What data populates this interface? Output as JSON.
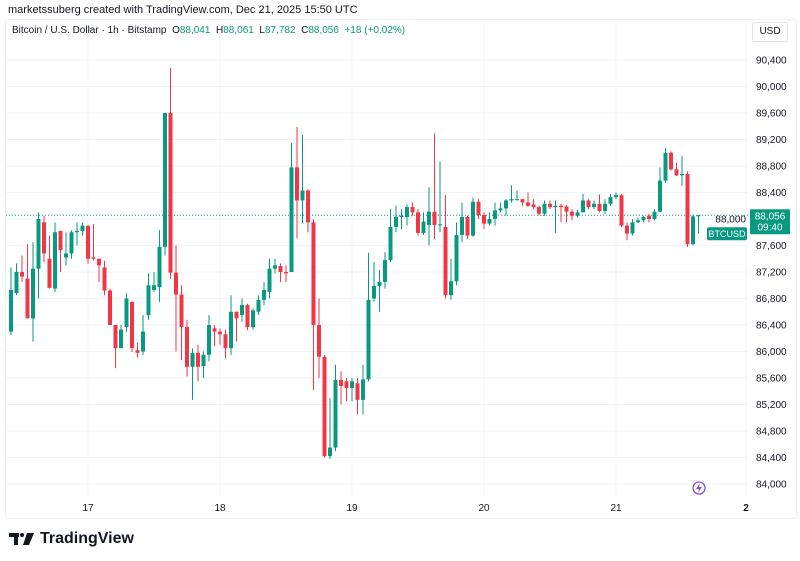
{
  "header": {
    "credit": "marketssuberg created with TradingView.com, Dec 21, 2025 15:50 UTC"
  },
  "legend": {
    "symbol": "Bitcoin / U.S. Dollar · 1h · Bitstamp",
    "o_label": "O",
    "o": "88,041",
    "h_label": "H",
    "h": "88,061",
    "l_label": "L",
    "l": "87,782",
    "c_label": "C",
    "c": "88,056",
    "change": "+18 (+0.02%)"
  },
  "currency": "USD",
  "last_price": {
    "ticker": "BTCUSD",
    "price": "88,056",
    "countdown": "09:40"
  },
  "colors": {
    "up": "#089981",
    "down": "#f23645",
    "grid": "#f0f3fa",
    "accent": "#7e57c2"
  },
  "logo": {
    "text": "TradingView"
  },
  "chart_data": {
    "type": "candlestick",
    "interval": "1h",
    "ylim": [
      84000,
      90400
    ],
    "y_ticks": [
      "90,400",
      "90,000",
      "89,600",
      "89,200",
      "88,800",
      "88,400",
      "88,000",
      "87,600",
      "87,200",
      "86,800",
      "86,400",
      "86,000",
      "85,600",
      "85,200",
      "84,800",
      "84,400",
      "84,000"
    ],
    "x_ticks": [
      "17",
      "18",
      "19",
      "20",
      "21",
      "2"
    ],
    "grid": true,
    "last_price": 88056,
    "ohlc": [
      [
        86300,
        87270,
        86250,
        86930
      ],
      [
        86880,
        87330,
        86850,
        87200
      ],
      [
        87200,
        87450,
        87050,
        87130
      ],
      [
        87100,
        87620,
        86500,
        86500
      ],
      [
        86500,
        87650,
        86150,
        87250
      ],
      [
        87250,
        88100,
        86800,
        88000
      ],
      [
        87950,
        88050,
        87350,
        87480
      ],
      [
        87400,
        87750,
        86950,
        86960
      ],
      [
        86950,
        87950,
        86900,
        87800
      ],
      [
        87820,
        87820,
        87200,
        87530
      ],
      [
        87420,
        87800,
        87300,
        87480
      ],
      [
        87480,
        87830,
        87400,
        87800
      ],
      [
        87800,
        87950,
        87600,
        87820
      ],
      [
        87820,
        87950,
        87750,
        87900
      ],
      [
        87900,
        87900,
        87320,
        87400
      ],
      [
        87420,
        87920,
        87370,
        87400
      ],
      [
        87400,
        87400,
        87050,
        87300
      ],
      [
        87270,
        87370,
        86850,
        86920
      ],
      [
        86920,
        86950,
        86400,
        86400
      ],
      [
        86400,
        86400,
        85750,
        86050
      ],
      [
        86050,
        86400,
        86050,
        86330
      ],
      [
        86370,
        86880,
        86300,
        86800
      ],
      [
        86750,
        86750,
        85990,
        86050
      ],
      [
        86020,
        86140,
        85910,
        85980
      ],
      [
        86000,
        86550,
        85950,
        86300
      ],
      [
        86550,
        87180,
        86480,
        87000
      ],
      [
        86930,
        87200,
        86900,
        87000
      ],
      [
        86970,
        87830,
        86750,
        87580
      ],
      [
        87580,
        89600,
        87450,
        89600
      ],
      [
        89600,
        90280,
        87100,
        87190
      ],
      [
        87190,
        87600,
        86000,
        86860
      ],
      [
        86860,
        87000,
        85870,
        86370
      ],
      [
        86370,
        86480,
        85620,
        85770
      ],
      [
        85770,
        86050,
        85270,
        85980
      ],
      [
        85980,
        86100,
        85550,
        85770
      ],
      [
        85780,
        86000,
        85600,
        85950
      ],
      [
        85950,
        86550,
        85850,
        86400
      ],
      [
        86350,
        86400,
        86080,
        86300
      ],
      [
        86300,
        86350,
        86100,
        86260
      ],
      [
        86260,
        86330,
        85900,
        86050
      ],
      [
        86050,
        86850,
        85950,
        86600
      ],
      [
        86600,
        86600,
        86150,
        86500
      ],
      [
        86550,
        86800,
        86450,
        86700
      ],
      [
        86700,
        86720,
        86320,
        86370
      ],
      [
        86370,
        86650,
        86330,
        86620
      ],
      [
        86600,
        86850,
        86550,
        86780
      ],
      [
        86780,
        87050,
        86700,
        86930
      ],
      [
        86900,
        87400,
        86800,
        87250
      ],
      [
        87250,
        87400,
        87180,
        87300
      ],
      [
        87290,
        87330,
        87050,
        87200
      ],
      [
        87200,
        87300,
        87050,
        87180
      ],
      [
        87200,
        89150,
        87200,
        88780
      ],
      [
        88780,
        89390,
        87710,
        88280
      ],
      [
        88280,
        89270,
        87940,
        88430
      ],
      [
        88430,
        88450,
        87800,
        87950
      ],
      [
        87950,
        88000,
        85420,
        86400
      ],
      [
        86400,
        86800,
        85600,
        85920
      ],
      [
        85920,
        85950,
        84400,
        84420
      ],
      [
        84420,
        85300,
        84380,
        84550
      ],
      [
        84550,
        85800,
        84500,
        85570
      ],
      [
        85570,
        85700,
        85200,
        85480
      ],
      [
        85550,
        85600,
        85250,
        85450
      ],
      [
        85450,
        85600,
        85250,
        85550
      ],
      [
        85520,
        85600,
        85050,
        85270
      ],
      [
        85270,
        85800,
        85050,
        85580
      ],
      [
        85580,
        87490,
        85550,
        86780
      ],
      [
        86800,
        87350,
        86750,
        86990
      ],
      [
        86990,
        87230,
        86600,
        87050
      ],
      [
        87050,
        87500,
        86950,
        87380
      ],
      [
        87380,
        88150,
        87350,
        87880
      ],
      [
        87880,
        88200,
        87800,
        88030
      ],
      [
        88030,
        88150,
        87850,
        88050
      ],
      [
        88030,
        88220,
        87900,
        88180
      ],
      [
        88180,
        88250,
        88050,
        88100
      ],
      [
        88100,
        88150,
        87750,
        87790
      ],
      [
        87790,
        88100,
        87760,
        87960
      ],
      [
        87910,
        88480,
        87600,
        88110
      ],
      [
        88110,
        89290,
        87700,
        87910
      ],
      [
        87910,
        88870,
        87800,
        87920
      ],
      [
        87880,
        88360,
        86800,
        86850
      ],
      [
        86850,
        87400,
        86780,
        87060
      ],
      [
        87060,
        87950,
        87000,
        87760
      ],
      [
        87760,
        88250,
        87650,
        88030
      ],
      [
        88030,
        88050,
        87700,
        87750
      ],
      [
        87750,
        88320,
        87730,
        88260
      ],
      [
        88260,
        88300,
        88000,
        88060
      ],
      [
        88060,
        88100,
        87850,
        87930
      ],
      [
        87930,
        88100,
        87900,
        88000
      ],
      [
        88000,
        88250,
        87900,
        88130
      ],
      [
        88130,
        88250,
        88100,
        88160
      ],
      [
        88160,
        88300,
        88050,
        88280
      ],
      [
        88280,
        88510,
        88250,
        88300
      ],
      [
        88300,
        88430,
        88280,
        88300
      ],
      [
        88300,
        88300,
        88200,
        88250
      ],
      [
        88250,
        88400,
        88180,
        88200
      ],
      [
        88220,
        88300,
        88150,
        88180
      ],
      [
        88180,
        88200,
        88050,
        88080
      ],
      [
        88080,
        88280,
        88050,
        88230
      ],
      [
        88230,
        88280,
        88150,
        88180
      ],
      [
        88180,
        88280,
        87790,
        88200
      ],
      [
        88200,
        88230,
        87950,
        88180
      ],
      [
        88190,
        88210,
        87950,
        88110
      ],
      [
        88110,
        88150,
        87980,
        88050
      ],
      [
        88050,
        88140,
        88020,
        88100
      ],
      [
        88100,
        88380,
        88100,
        88280
      ],
      [
        88280,
        88300,
        88150,
        88180
      ],
      [
        88180,
        88280,
        88150,
        88230
      ],
      [
        88230,
        88370,
        88100,
        88120
      ],
      [
        88120,
        88300,
        88080,
        88230
      ],
      [
        88230,
        88380,
        88200,
        88330
      ],
      [
        88330,
        88400,
        88300,
        88360
      ],
      [
        88360,
        88380,
        87880,
        87900
      ],
      [
        87900,
        87950,
        87680,
        87780
      ],
      [
        87780,
        88000,
        87750,
        87950
      ],
      [
        87950,
        88020,
        87940,
        87980
      ],
      [
        87980,
        88050,
        87950,
        88030
      ],
      [
        88050,
        88080,
        87950,
        88000
      ],
      [
        88000,
        88150,
        87980,
        88110
      ],
      [
        88110,
        88780,
        88100,
        88580
      ],
      [
        88580,
        89070,
        88550,
        89000
      ],
      [
        89000,
        89020,
        88730,
        88750
      ],
      [
        88750,
        88850,
        88650,
        88660
      ],
      [
        88660,
        88950,
        88500,
        88680
      ],
      [
        88680,
        88720,
        87580,
        87620
      ],
      [
        87620,
        88060,
        87600,
        88040
      ],
      [
        88041,
        88061,
        87782,
        88056
      ]
    ]
  }
}
